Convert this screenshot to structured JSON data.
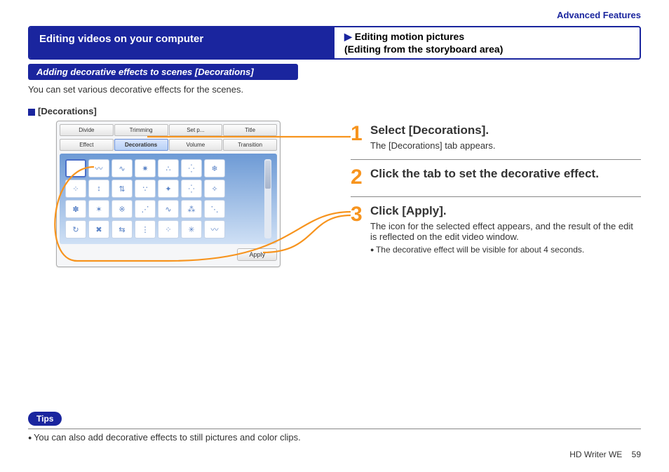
{
  "header": {
    "advanced": "Advanced Features"
  },
  "titlebar": {
    "left": "Editing videos on your computer",
    "right_line1": "Editing motion pictures",
    "right_line2": "(Editing from the storyboard area)"
  },
  "subbar": "Adding decorative effects to scenes [Decorations]",
  "intro": "You can set various decorative effects for the scenes.",
  "deco_label": "[Decorations]",
  "app": {
    "tabs_row1": [
      "Divide",
      "Trimming",
      "Set p...",
      "Title"
    ],
    "tabs_row2": [
      "Effect",
      "Decorations",
      "Volume",
      "Transition"
    ],
    "active_index_row2": 1,
    "apply_label": "Apply",
    "cells": [
      " ",
      "〰",
      "∿",
      "✷",
      "∴",
      "⁛",
      "❄",
      "⁘",
      "↕",
      "⇅",
      "∵",
      "✦",
      "⁛",
      "✧",
      "✽",
      "✶",
      "※",
      "⋰",
      "∿",
      "⁂",
      "⋱",
      "↻",
      "✖",
      "⇆",
      "⋮",
      "⁘",
      "✳",
      "〰"
    ]
  },
  "steps": [
    {
      "num": "1",
      "title": "Select [Decorations].",
      "desc": "The [Decorations] tab appears."
    },
    {
      "num": "2",
      "title": "Click the tab to set the decorative effect."
    },
    {
      "num": "3",
      "title": "Click [Apply].",
      "desc": "The icon for the selected effect appears, and the result of the edit is reflected on the edit video window.",
      "note": "The decorative effect will be visible for about 4 seconds."
    }
  ],
  "tips": {
    "badge": "Tips",
    "text": "You can also add decorative effects to still pictures and color clips."
  },
  "footer": {
    "product": "HD Writer WE",
    "page": "59"
  },
  "colors": {
    "brand": "#1a259e",
    "accent": "#f7941e"
  },
  "connectors": {
    "stroke": "#f7941e",
    "stroke_width": 2.2
  }
}
